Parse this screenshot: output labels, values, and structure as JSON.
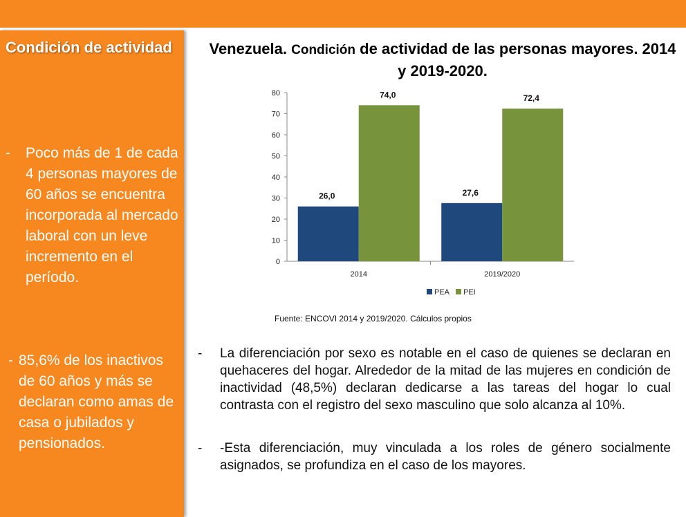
{
  "sidebar": {
    "title": "Condición de actividad",
    "bullets": [
      {
        "dash": "-",
        "text": "Poco más de 1 de cada 4 personas mayores de 60 años se encuentra incorporada al mercado laboral con un leve incremento en el período."
      },
      {
        "dash": "-",
        "text": "85,6% de los inactivos de 60 años y más se declaran como amas de casa o jubilados y pensionados."
      }
    ]
  },
  "chart_title": {
    "country": "Venezuela.",
    "sub": "Condición",
    "rest": "de actividad de las personas mayores. 2014 y 2019-2020."
  },
  "chart_data": {
    "type": "bar",
    "categories": [
      "2014",
      "2019/2020"
    ],
    "series": [
      {
        "name": "PEA",
        "values": [
          26.0,
          27.6
        ],
        "color": "#1f497d"
      },
      {
        "name": "PEI",
        "values": [
          74.0,
          72.4
        ],
        "color": "#77933c"
      }
    ],
    "data_labels": [
      [
        "26,0",
        "27,6"
      ],
      [
        "74,0",
        "72,4"
      ]
    ],
    "ylim": [
      0,
      80
    ],
    "yticks": [
      0,
      10,
      20,
      30,
      40,
      50,
      60,
      70,
      80
    ],
    "grid": false,
    "legend_position": "bottom"
  },
  "source": "Fuente: ENCOVI 2014 y 2019/2020. Cálculos propios",
  "lower_bullets": [
    {
      "dash": "-",
      "text": "La diferenciación por sexo es notable en el caso de quienes se declaran en quehaceres del hogar. Alrededor de la mitad de las mujeres en condición de inactividad (48,5%) declaran dedicarse a las tareas del hogar lo cual contrasta con el registro del sexo masculino que solo alcanza al 10%."
    },
    {
      "dash": "-",
      "text": "-Esta diferenciación, muy vinculada a los roles de género socialmente asignados, se profundiza en el caso de los mayores."
    }
  ]
}
